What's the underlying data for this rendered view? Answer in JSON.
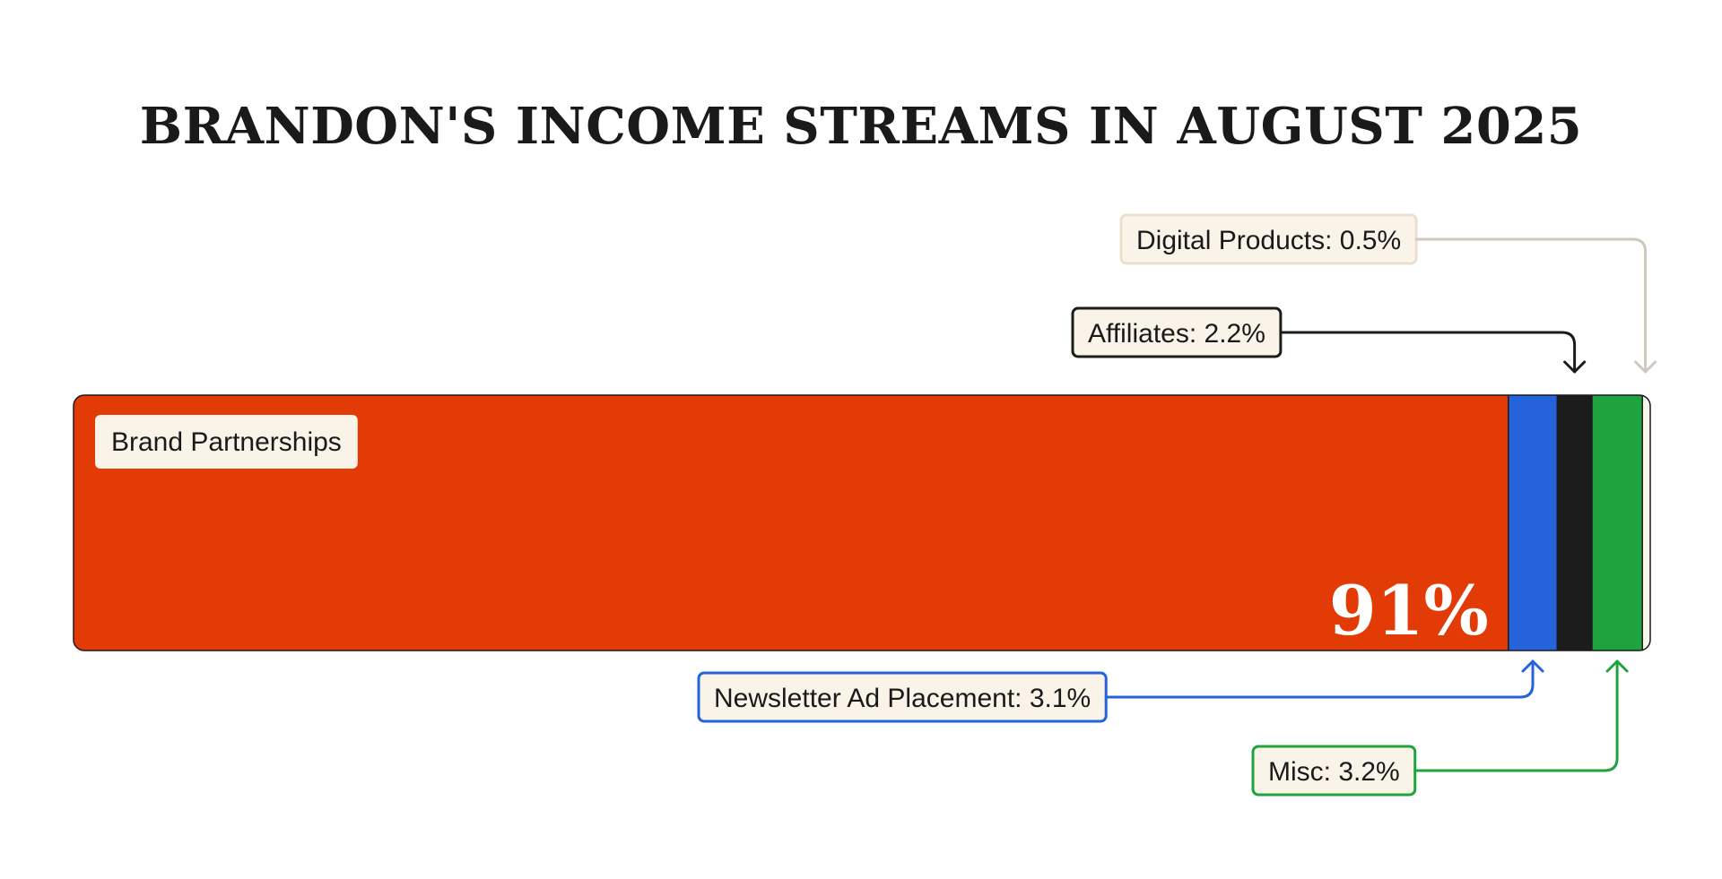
{
  "chart_data": {
    "type": "bar",
    "subtype": "stacked-horizontal-100",
    "title": "BRANDON'S INCOME STREAMS IN AUGUST 2025",
    "unit": "%",
    "xlim": [
      0,
      100
    ],
    "segments": [
      {
        "key": "brand",
        "name": "Brand Partnerships",
        "value": 91,
        "color": "#e33b05",
        "callout": "Brand Partnerships",
        "value_label": "91%"
      },
      {
        "key": "newsletter",
        "name": "Newsletter Ad Placement",
        "value": 3.1,
        "color": "#2563dc",
        "callout": "Newsletter Ad Placement: 3.1%",
        "border_color": "#2563dc"
      },
      {
        "key": "affiliates",
        "name": "Affiliates",
        "value": 2.2,
        "color": "#1c1c1c",
        "callout": "Affiliates: 2.2%",
        "border_color": "#1c1c1c"
      },
      {
        "key": "misc",
        "name": "Misc",
        "value": 3.2,
        "color": "#1fa33f",
        "callout": "Misc: 3.2%",
        "border_color": "#1fa33f"
      },
      {
        "key": "digital",
        "name": "Digital Products",
        "value": 0.5,
        "color": "#faf6ef",
        "callout": "Digital Products: 0.5%",
        "border_color": "#ece0cc",
        "arrow_color": "#cfc8bc"
      }
    ],
    "label_background": "#faf3e8",
    "grid": false,
    "legend": "none"
  }
}
